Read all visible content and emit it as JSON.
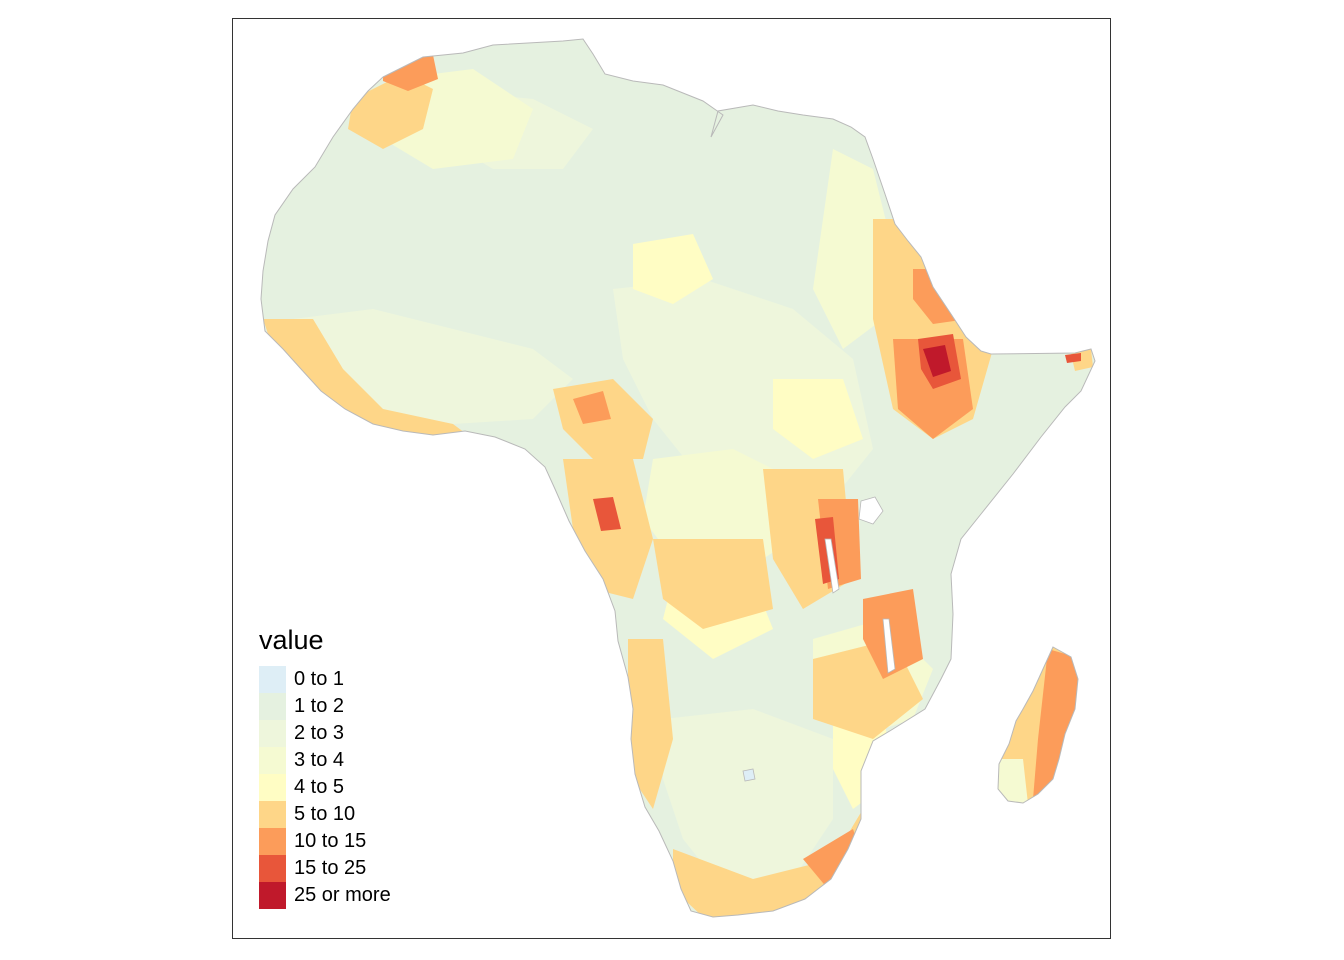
{
  "map": {
    "legend": {
      "title": "value",
      "classes": [
        {
          "label": "0 to 1",
          "color": "#deeef6"
        },
        {
          "label": "1 to 2",
          "color": "#e5f1e0"
        },
        {
          "label": "2 to 3",
          "color": "#eef6dc"
        },
        {
          "label": "3 to 4",
          "color": "#f5fad2"
        },
        {
          "label": "4 to 5",
          "color": "#fffdc4"
        },
        {
          "label": "5 to 10",
          "color": "#fed688"
        },
        {
          "label": "10 to 15",
          "color": "#fc9c5a"
        },
        {
          "label": "15 to 25",
          "color": "#e8563a"
        },
        {
          "label": "25 or more",
          "color": "#c0192b"
        }
      ]
    },
    "colors": {
      "boundary": "#b9b9b9",
      "water": "#ffffff",
      "frame": "#333333"
    }
  }
}
